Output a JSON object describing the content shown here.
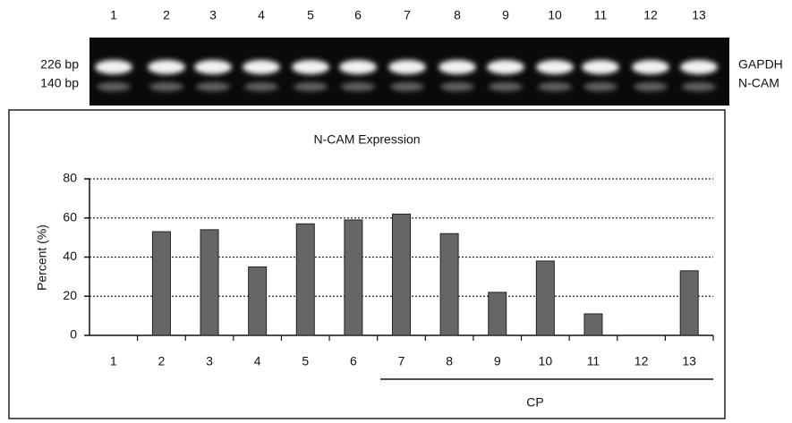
{
  "gel": {
    "lanes": [
      "1",
      "2",
      "3",
      "4",
      "5",
      "6",
      "7",
      "8",
      "9",
      "10",
      "11",
      "12",
      "13"
    ],
    "band_labels": [
      "226 bp",
      "140 bp"
    ],
    "gene_labels": [
      "GAPDH",
      "N-CAM"
    ]
  },
  "chart_data": {
    "type": "bar",
    "title": "N-CAM Expression",
    "ylabel": "Percent (%)",
    "categories": [
      "1",
      "2",
      "3",
      "4",
      "5",
      "6",
      "7",
      "8",
      "9",
      "10",
      "11",
      "12",
      "13"
    ],
    "values": [
      0,
      53,
      54,
      35,
      57,
      59,
      62,
      52,
      22,
      38,
      11,
      0,
      33
    ],
    "color": "#666666",
    "ylim": [
      0,
      80
    ],
    "yticks": [
      0,
      20,
      40,
      60,
      80
    ],
    "grid": true,
    "annotation": "CP"
  }
}
